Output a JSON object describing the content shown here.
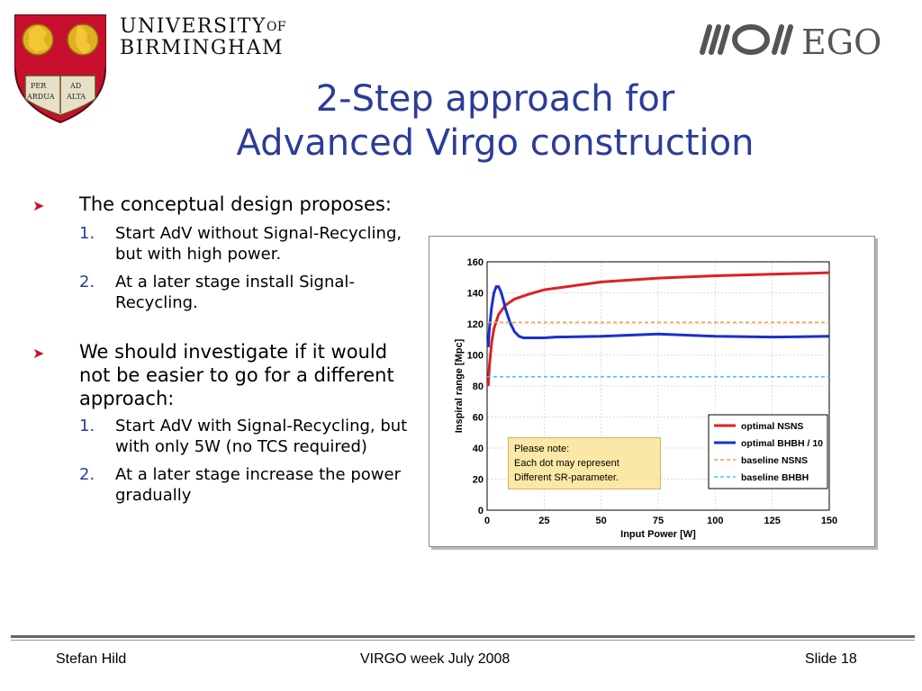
{
  "header": {
    "university_line1": "UNIVERSITY",
    "university_of": "OF",
    "university_line2": "BIRMINGHAM",
    "crest_motto": [
      "PER",
      "AD",
      "ARDUA",
      "ALTA"
    ],
    "ego_text": "EGO"
  },
  "title": {
    "line1": "2-Step approach for",
    "line2": "Advanced Virgo construction"
  },
  "bullets": [
    {
      "text": "The conceptual design proposes:",
      "items": [
        {
          "num": "1.",
          "text": "Start AdV without Signal-Recycling, but with high power."
        },
        {
          "num": "2.",
          "text": "At a later stage install Signal-Recycling."
        }
      ]
    },
    {
      "text": "We should investigate if it would not be easier to go for a different approach:",
      "items": [
        {
          "num": "1.",
          "text": "Start AdV with Signal-Recycling, but with only 5W (no TCS required)"
        },
        {
          "num": "2.",
          "text": "At a later stage increase the power gradually"
        }
      ]
    }
  ],
  "chart_data": {
    "type": "line",
    "xlabel": "Input Power [W]",
    "ylabel": "Inspiral range [Mpc]",
    "xlim": [
      0,
      150
    ],
    "ylim": [
      0,
      160
    ],
    "x_ticks": [
      "0",
      "25",
      "50",
      "75",
      "100",
      "125",
      "150"
    ],
    "y_ticks": [
      "0",
      "20",
      "40",
      "60",
      "80",
      "100",
      "120",
      "140",
      "160"
    ],
    "legend_position": "bottom-right",
    "series": [
      {
        "name": "optimal NSNS",
        "color": "#e02020",
        "dash": false,
        "x": [
          0.5,
          1,
          2,
          3,
          5,
          8,
          12,
          18,
          25,
          35,
          50,
          75,
          100,
          125,
          150
        ],
        "y": [
          80,
          93,
          108,
          117,
          126,
          132,
          136,
          139,
          142,
          144,
          147,
          149.5,
          151,
          152,
          153
        ]
      },
      {
        "name": "optimal BHBH / 10",
        "color": "#1a2fd0",
        "dash": false,
        "x": [
          0.5,
          1,
          2,
          3,
          4,
          5,
          6,
          7,
          8,
          10,
          12,
          14,
          16,
          18,
          20,
          25,
          30,
          50,
          75,
          100,
          125,
          150
        ],
        "y": [
          105,
          117,
          131,
          140,
          144,
          144,
          141,
          136,
          130,
          121,
          115,
          112,
          111,
          111,
          111,
          111,
          111.5,
          112,
          113.5,
          112,
          111.5,
          112
        ]
      },
      {
        "name": "baseline NSNS",
        "color": "#f0a040",
        "dash": true,
        "x": [
          0,
          150
        ],
        "y": [
          121,
          121
        ]
      },
      {
        "name": "baseline BHBH",
        "color": "#40c8e0",
        "dash": true,
        "x": [
          0,
          150
        ],
        "y": [
          86,
          86
        ]
      }
    ]
  },
  "note": {
    "line1": "Please note:",
    "line2": "Each dot may represent",
    "line3": "Different SR-parameter."
  },
  "footer": {
    "author": "Stefan Hild",
    "event": "VIRGO week July 2008",
    "slide": "Slide 18"
  }
}
